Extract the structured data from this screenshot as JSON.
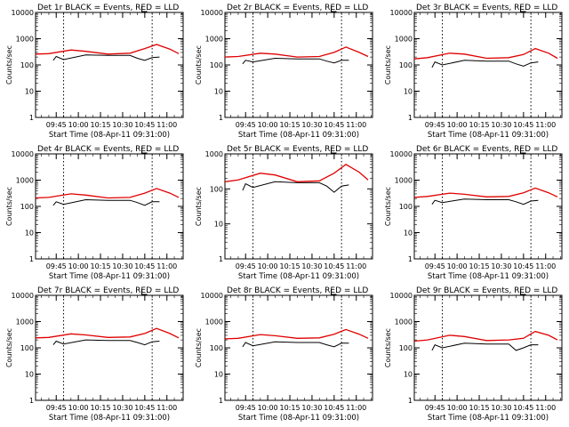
{
  "chart_data": [
    {
      "type": "line",
      "title": "Det 1r BLACK = Events, RED = LLD",
      "xlabel": "Start Time (08-Apr-11 09:31:00)",
      "ylabel": "Counts/sec",
      "yscale": "log",
      "ylim": [
        1,
        10000
      ],
      "x_ticks": [
        "09:45",
        "10:00",
        "10:15",
        "10:30",
        "10:45",
        "11:00"
      ],
      "y_ticks": [
        "1",
        "10",
        "100",
        "1000",
        "10000"
      ],
      "series": [
        {
          "color": "#000000",
          "x": [
            "09:43",
            "09:45",
            "09:50",
            "10:05",
            "10:20",
            "10:35",
            "10:40",
            "10:45",
            "10:50",
            "10:55"
          ],
          "y": [
            150,
            210,
            160,
            240,
            230,
            230,
            180,
            150,
            190,
            200
          ]
        },
        {
          "color": "#e00000",
          "x": [
            "09:31",
            "09:40",
            "09:55",
            "10:05",
            "10:20",
            "10:35",
            "10:45",
            "10:53",
            "11:02",
            "11:08"
          ],
          "y": [
            260,
            270,
            370,
            330,
            260,
            280,
            420,
            600,
            400,
            270
          ]
        }
      ]
    },
    {
      "type": "line",
      "title": "Det 2r BLACK = Events, RED = LLD",
      "xlabel": "Start Time (08-Apr-11 09:31:00)",
      "ylabel": "Counts/sec",
      "yscale": "log",
      "ylim": [
        1,
        10000
      ],
      "x_ticks": [
        "09:45",
        "10:00",
        "10:15",
        "10:30",
        "10:45",
        "11:00"
      ],
      "y_ticks": [
        "1",
        "10",
        "100",
        "1000",
        "10000"
      ],
      "series": [
        {
          "color": "#000000",
          "x": [
            "09:43",
            "09:45",
            "09:50",
            "10:05",
            "10:20",
            "10:35",
            "10:40",
            "10:45",
            "10:50",
            "10:55"
          ],
          "y": [
            110,
            150,
            130,
            180,
            170,
            170,
            140,
            120,
            150,
            150
          ]
        },
        {
          "color": "#e00000",
          "x": [
            "09:31",
            "09:40",
            "09:55",
            "10:05",
            "10:20",
            "10:35",
            "10:45",
            "10:53",
            "11:02",
            "11:08"
          ],
          "y": [
            200,
            210,
            280,
            260,
            200,
            210,
            300,
            480,
            300,
            210
          ]
        }
      ]
    },
    {
      "type": "line",
      "title": "Det 3r BLACK = Events, RED = LLD",
      "xlabel": "Start Time (08-Apr-11 09:31:00)",
      "ylabel": "Counts/sec",
      "yscale": "log",
      "ylim": [
        1,
        10000
      ],
      "x_ticks": [
        "09:45",
        "10:00",
        "10:15",
        "10:30",
        "10:45",
        "11:00"
      ],
      "y_ticks": [
        "1",
        "10",
        "100",
        "1000",
        "10000"
      ],
      "series": [
        {
          "color": "#000000",
          "x": [
            "09:43",
            "09:45",
            "09:50",
            "10:05",
            "10:20",
            "10:35",
            "10:40",
            "10:45",
            "10:50",
            "10:55"
          ],
          "y": [
            80,
            130,
            100,
            150,
            140,
            140,
            110,
            90,
            120,
            130
          ]
        },
        {
          "color": "#e00000",
          "x": [
            "09:31",
            "09:40",
            "09:55",
            "10:05",
            "10:20",
            "10:35",
            "10:45",
            "10:53",
            "11:02",
            "11:08"
          ],
          "y": [
            170,
            190,
            280,
            260,
            180,
            190,
            250,
            420,
            280,
            180
          ]
        }
      ]
    },
    {
      "type": "line",
      "title": "Det 4r BLACK = Events, RED = LLD",
      "xlabel": "Start Time (08-Apr-11 09:31:00)",
      "ylabel": "Counts/sec",
      "yscale": "log",
      "ylim": [
        1,
        10000
      ],
      "x_ticks": [
        "09:45",
        "10:00",
        "10:15",
        "10:30",
        "10:45",
        "11:00"
      ],
      "y_ticks": [
        "1",
        "10",
        "100",
        "1000",
        "10000"
      ],
      "series": [
        {
          "color": "#000000",
          "x": [
            "09:43",
            "09:45",
            "09:50",
            "10:05",
            "10:20",
            "10:35",
            "10:40",
            "10:45",
            "10:50",
            "10:55"
          ],
          "y": [
            110,
            150,
            120,
            180,
            170,
            170,
            140,
            110,
            150,
            150
          ]
        },
        {
          "color": "#e00000",
          "x": [
            "09:31",
            "09:40",
            "09:55",
            "10:05",
            "10:20",
            "10:35",
            "10:45",
            "10:53",
            "11:02",
            "11:08"
          ],
          "y": [
            210,
            220,
            300,
            270,
            210,
            220,
            320,
            480,
            320,
            220
          ]
        }
      ]
    },
    {
      "type": "line",
      "title": "Det 5r BLACK = Events, RED = LLD",
      "xlabel": "Start Time (08-Apr-11 09:31:00)",
      "ylabel": "Counts/sec",
      "yscale": "log",
      "ylim": [
        1,
        1000
      ],
      "x_ticks": [
        "09:45",
        "10:00",
        "10:15",
        "10:30",
        "10:45",
        "11:00"
      ],
      "y_ticks": [
        "1",
        "10",
        "100",
        "1000"
      ],
      "series": [
        {
          "color": "#000000",
          "x": [
            "09:43",
            "09:45",
            "09:50",
            "10:05",
            "10:20",
            "10:35",
            "10:40",
            "10:45",
            "10:50",
            "10:55"
          ],
          "y": [
            90,
            140,
            110,
            160,
            150,
            150,
            120,
            80,
            120,
            130
          ]
        },
        {
          "color": "#e00000",
          "x": [
            "09:31",
            "09:40",
            "09:55",
            "10:05",
            "10:20",
            "10:35",
            "10:45",
            "10:53",
            "11:02",
            "11:08"
          ],
          "y": [
            160,
            180,
            280,
            250,
            160,
            170,
            280,
            500,
            300,
            180
          ]
        }
      ]
    },
    {
      "type": "line",
      "title": "Det 6r BLACK = Events, RED = LLD",
      "xlabel": "Start Time (08-Apr-11 09:31:00)",
      "ylabel": "Counts/sec",
      "yscale": "log",
      "ylim": [
        1,
        10000
      ],
      "x_ticks": [
        "09:45",
        "10:00",
        "10:15",
        "10:30",
        "10:45",
        "11:00"
      ],
      "y_ticks": [
        "1",
        "10",
        "100",
        "1000",
        "10000"
      ],
      "series": [
        {
          "color": "#000000",
          "x": [
            "09:43",
            "09:45",
            "09:50",
            "10:05",
            "10:20",
            "10:35",
            "10:40",
            "10:45",
            "10:50",
            "10:55"
          ],
          "y": [
            120,
            170,
            140,
            190,
            180,
            180,
            150,
            120,
            160,
            170
          ]
        },
        {
          "color": "#e00000",
          "x": [
            "09:31",
            "09:40",
            "09:55",
            "10:05",
            "10:20",
            "10:35",
            "10:45",
            "10:53",
            "11:02",
            "11:08"
          ],
          "y": [
            220,
            240,
            320,
            290,
            230,
            240,
            330,
            500,
            330,
            230
          ]
        }
      ]
    },
    {
      "type": "line",
      "title": "Det 7r BLACK = Events, RED = LLD",
      "xlabel": "Start Time (08-Apr-11 09:31:00)",
      "ylabel": "Counts/sec",
      "yscale": "log",
      "ylim": [
        1,
        10000
      ],
      "x_ticks": [
        "09:45",
        "10:00",
        "10:15",
        "10:30",
        "10:45",
        "11:00"
      ],
      "y_ticks": [
        "1",
        "10",
        "100",
        "1000",
        "10000"
      ],
      "series": [
        {
          "color": "#000000",
          "x": [
            "09:43",
            "09:45",
            "09:50",
            "10:05",
            "10:20",
            "10:35",
            "10:40",
            "10:45",
            "10:50",
            "10:55"
          ],
          "y": [
            130,
            180,
            140,
            200,
            190,
            190,
            160,
            130,
            170,
            180
          ]
        },
        {
          "color": "#e00000",
          "x": [
            "09:31",
            "09:40",
            "09:55",
            "10:05",
            "10:20",
            "10:35",
            "10:45",
            "10:53",
            "11:02",
            "11:08"
          ],
          "y": [
            240,
            250,
            340,
            310,
            250,
            260,
            350,
            550,
            350,
            240
          ]
        }
      ]
    },
    {
      "type": "line",
      "title": "Det 8r BLACK = Events, RED = LLD",
      "xlabel": "Start Time (08-Apr-11 09:31:00)",
      "ylabel": "Counts/sec",
      "yscale": "log",
      "ylim": [
        1,
        10000
      ],
      "x_ticks": [
        "09:45",
        "10:00",
        "10:15",
        "10:30",
        "10:45",
        "11:00"
      ],
      "y_ticks": [
        "1",
        "10",
        "100",
        "1000",
        "10000"
      ],
      "series": [
        {
          "color": "#000000",
          "x": [
            "09:43",
            "09:45",
            "09:50",
            "10:05",
            "10:20",
            "10:35",
            "10:40",
            "10:45",
            "10:50",
            "10:55"
          ],
          "y": [
            110,
            160,
            120,
            170,
            160,
            160,
            130,
            110,
            150,
            150
          ]
        },
        {
          "color": "#e00000",
          "x": [
            "09:31",
            "09:40",
            "09:55",
            "10:05",
            "10:20",
            "10:35",
            "10:45",
            "10:53",
            "11:02",
            "11:08"
          ],
          "y": [
            220,
            230,
            320,
            290,
            230,
            240,
            330,
            500,
            330,
            230
          ]
        }
      ]
    },
    {
      "type": "line",
      "title": "Det 9r BLACK = Events, RED = LLD",
      "xlabel": "Start Time (08-Apr-11 09:31:00)",
      "ylabel": "Counts/sec",
      "yscale": "log",
      "ylim": [
        1,
        10000
      ],
      "x_ticks": [
        "09:45",
        "10:00",
        "10:15",
        "10:30",
        "10:45",
        "11:00"
      ],
      "y_ticks": [
        "1",
        "10",
        "100",
        "1000",
        "10000"
      ],
      "series": [
        {
          "color": "#000000",
          "x": [
            "09:43",
            "09:45",
            "09:50",
            "10:05",
            "10:20",
            "10:35",
            "10:40",
            "10:45",
            "10:50",
            "10:55"
          ],
          "y": [
            80,
            130,
            100,
            150,
            140,
            140,
            80,
            100,
            130,
            130
          ]
        },
        {
          "color": "#e00000",
          "x": [
            "09:31",
            "09:40",
            "09:55",
            "10:05",
            "10:20",
            "10:35",
            "10:45",
            "10:53",
            "11:02",
            "11:08"
          ],
          "y": [
            180,
            200,
            300,
            270,
            190,
            200,
            230,
            420,
            300,
            200
          ]
        }
      ]
    }
  ]
}
